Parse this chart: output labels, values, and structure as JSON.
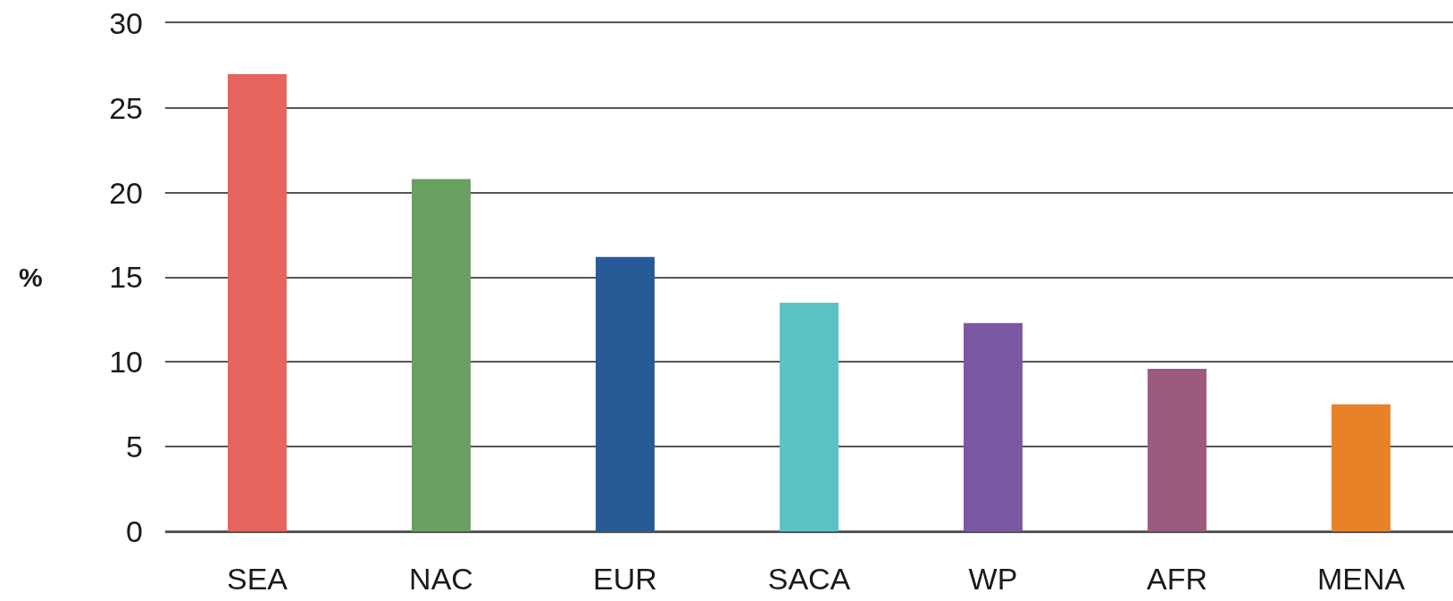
{
  "chart_data": {
    "type": "bar",
    "ylabel": "%",
    "categories": [
      "SEA",
      "NAC",
      "EUR",
      "SACA",
      "WP",
      "AFR",
      "MENA"
    ],
    "values": [
      27.0,
      20.8,
      16.2,
      13.5,
      12.3,
      9.6,
      7.5
    ],
    "colors": [
      "#e5645d",
      "#6a9f62",
      "#275b97",
      "#5bc3c6",
      "#7b58a3",
      "#9c5b7e",
      "#e88228"
    ],
    "ylim": [
      0,
      30
    ],
    "yticks": [
      0,
      5,
      10,
      15,
      20,
      25,
      30
    ],
    "grid": "y"
  }
}
